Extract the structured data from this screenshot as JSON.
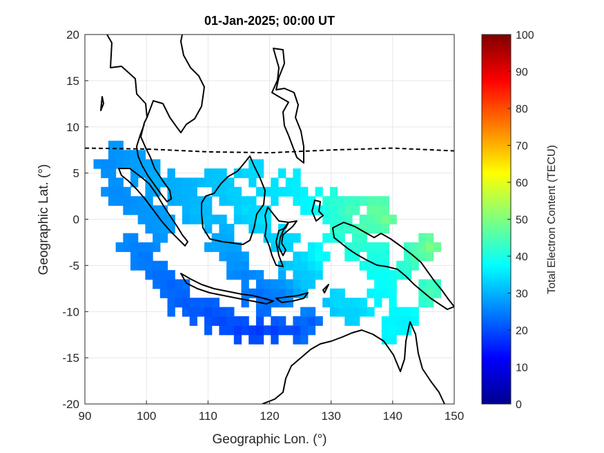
{
  "title": "01-Jan-2025; 00:00 UT",
  "xlabel": "Geographic Lon. (°)",
  "ylabel": "Geographic Lat. (°)",
  "colorbar": {
    "label": "Total Electron Content (TECU)",
    "range": [
      0,
      100
    ],
    "ticks": [
      "0",
      "10",
      "20",
      "30",
      "40",
      "50",
      "60",
      "70",
      "80",
      "90",
      "100"
    ],
    "colormap": "jet"
  },
  "chart_data": {
    "type": "heatmap",
    "title": "01-Jan-2025; 00:00 UT",
    "xlabel": "Geographic Lon. (°)",
    "ylabel": "Geographic Lat. (°)",
    "xlim": [
      90,
      150
    ],
    "ylim": [
      -20,
      20
    ],
    "xticks": [
      "90",
      "100",
      "110",
      "120",
      "130",
      "140",
      "150"
    ],
    "yticks": [
      "20",
      "15",
      "10",
      "5",
      "0",
      "-5",
      "-10",
      "-15",
      "-20"
    ],
    "grid": true,
    "colorbar_label": "Total Electron Content (TECU)",
    "clim": [
      0,
      100
    ],
    "magnetic_equator": [
      [
        90,
        7.7
      ],
      [
        100,
        7.6
      ],
      [
        110,
        7.3
      ],
      [
        120,
        7.2
      ],
      [
        130,
        7.5
      ],
      [
        140,
        7.7
      ],
      [
        150,
        7.4
      ]
    ],
    "tec_samples": [
      {
        "lon": 94,
        "lat": 6,
        "tec": 26
      },
      {
        "lon": 96,
        "lat": 7,
        "tec": 27
      },
      {
        "lon": 98,
        "lat": 6,
        "tec": 28
      },
      {
        "lon": 100,
        "lat": 5,
        "tec": 29
      },
      {
        "lon": 102,
        "lat": 4,
        "tec": 30
      },
      {
        "lon": 95,
        "lat": 3,
        "tec": 26
      },
      {
        "lon": 97,
        "lat": 2,
        "tec": 26
      },
      {
        "lon": 99,
        "lat": 1,
        "tec": 27
      },
      {
        "lon": 101,
        "lat": 0,
        "tec": 27
      },
      {
        "lon": 103,
        "lat": -1,
        "tec": 28
      },
      {
        "lon": 98,
        "lat": -3,
        "tec": 25
      },
      {
        "lon": 100,
        "lat": -4,
        "tec": 24
      },
      {
        "lon": 102,
        "lat": -6,
        "tec": 23
      },
      {
        "lon": 104,
        "lat": -7,
        "tec": 22
      },
      {
        "lon": 106,
        "lat": -9,
        "tec": 21
      },
      {
        "lon": 108,
        "lat": -10,
        "tec": 21
      },
      {
        "lon": 110,
        "lat": -10,
        "tec": 20
      },
      {
        "lon": 112,
        "lat": -11,
        "tec": 19
      },
      {
        "lon": 115,
        "lat": -12,
        "tec": 18
      },
      {
        "lon": 118,
        "lat": -12,
        "tec": 17
      },
      {
        "lon": 121,
        "lat": -12,
        "tec": 18
      },
      {
        "lon": 124,
        "lat": -12,
        "tec": 19
      },
      {
        "lon": 127,
        "lat": -11,
        "tec": 21
      },
      {
        "lon": 106,
        "lat": 3,
        "tec": 30
      },
      {
        "lon": 108,
        "lat": 1,
        "tec": 31
      },
      {
        "lon": 110,
        "lat": 0,
        "tec": 31
      },
      {
        "lon": 112,
        "lat": -2,
        "tec": 29
      },
      {
        "lon": 114,
        "lat": -4,
        "tec": 27
      },
      {
        "lon": 116,
        "lat": -6,
        "tec": 25
      },
      {
        "lon": 118,
        "lat": -8,
        "tec": 23
      },
      {
        "lon": 120,
        "lat": -9,
        "tec": 23
      },
      {
        "lon": 122,
        "lat": -8,
        "tec": 25
      },
      {
        "lon": 111,
        "lat": 4,
        "tec": 32
      },
      {
        "lon": 114,
        "lat": 3,
        "tec": 33
      },
      {
        "lon": 117,
        "lat": 5,
        "tec": 34
      },
      {
        "lon": 116,
        "lat": 1,
        "tec": 34
      },
      {
        "lon": 119,
        "lat": 0,
        "tec": 35
      },
      {
        "lon": 121,
        "lat": 3,
        "tec": 35
      },
      {
        "lon": 124,
        "lat": 4,
        "tec": 36
      },
      {
        "lon": 126,
        "lat": 2,
        "tec": 37
      },
      {
        "lon": 122,
        "lat": -2,
        "tec": 34
      },
      {
        "lon": 124,
        "lat": -5,
        "tec": 33
      },
      {
        "lon": 126,
        "lat": -7,
        "tec": 32
      },
      {
        "lon": 128,
        "lat": -4,
        "tec": 38
      },
      {
        "lon": 130,
        "lat": 2,
        "tec": 42
      },
      {
        "lon": 131,
        "lat": -1,
        "tec": 43
      },
      {
        "lon": 133,
        "lat": 1,
        "tec": 45
      },
      {
        "lon": 135,
        "lat": -1,
        "tec": 46
      },
      {
        "lon": 137,
        "lat": 1,
        "tec": 48
      },
      {
        "lon": 139,
        "lat": 0,
        "tec": 49
      },
      {
        "lon": 134,
        "lat": -3,
        "tec": 42
      },
      {
        "lon": 137,
        "lat": -4,
        "tec": 40
      },
      {
        "lon": 139,
        "lat": -6,
        "tec": 38
      },
      {
        "lon": 142,
        "lat": -5,
        "tec": 42
      },
      {
        "lon": 144,
        "lat": -4,
        "tec": 46
      },
      {
        "lon": 146,
        "lat": -3,
        "tec": 50
      },
      {
        "lon": 131,
        "lat": -9,
        "tec": 34
      },
      {
        "lon": 134,
        "lat": -10,
        "tec": 33
      },
      {
        "lon": 138,
        "lat": -8,
        "tec": 37
      },
      {
        "lon": 142,
        "lat": -11,
        "tec": 36
      },
      {
        "lon": 146,
        "lat": -8,
        "tec": 45
      },
      {
        "lon": 140,
        "lat": -12,
        "tec": 37
      }
    ]
  }
}
